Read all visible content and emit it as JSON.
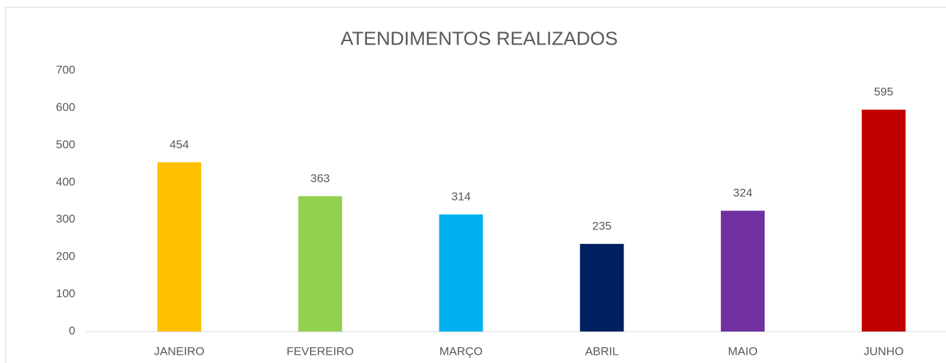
{
  "chart_data": {
    "type": "bar",
    "title": "ATENDIMENTOS REALIZADOS",
    "categories": [
      "JANEIRO",
      "FEVEREIRO",
      "MARÇO",
      "ABRIL",
      "MAIO",
      "JUNHO"
    ],
    "values": [
      454,
      363,
      314,
      235,
      324,
      595
    ],
    "colors": [
      "#FFC000",
      "#92D050",
      "#00B0F0",
      "#002060",
      "#7030A0",
      "#C00000"
    ],
    "ylim": [
      0,
      700
    ],
    "yticks": [
      0,
      100,
      200,
      300,
      400,
      500,
      600,
      700
    ],
    "grid": false
  }
}
